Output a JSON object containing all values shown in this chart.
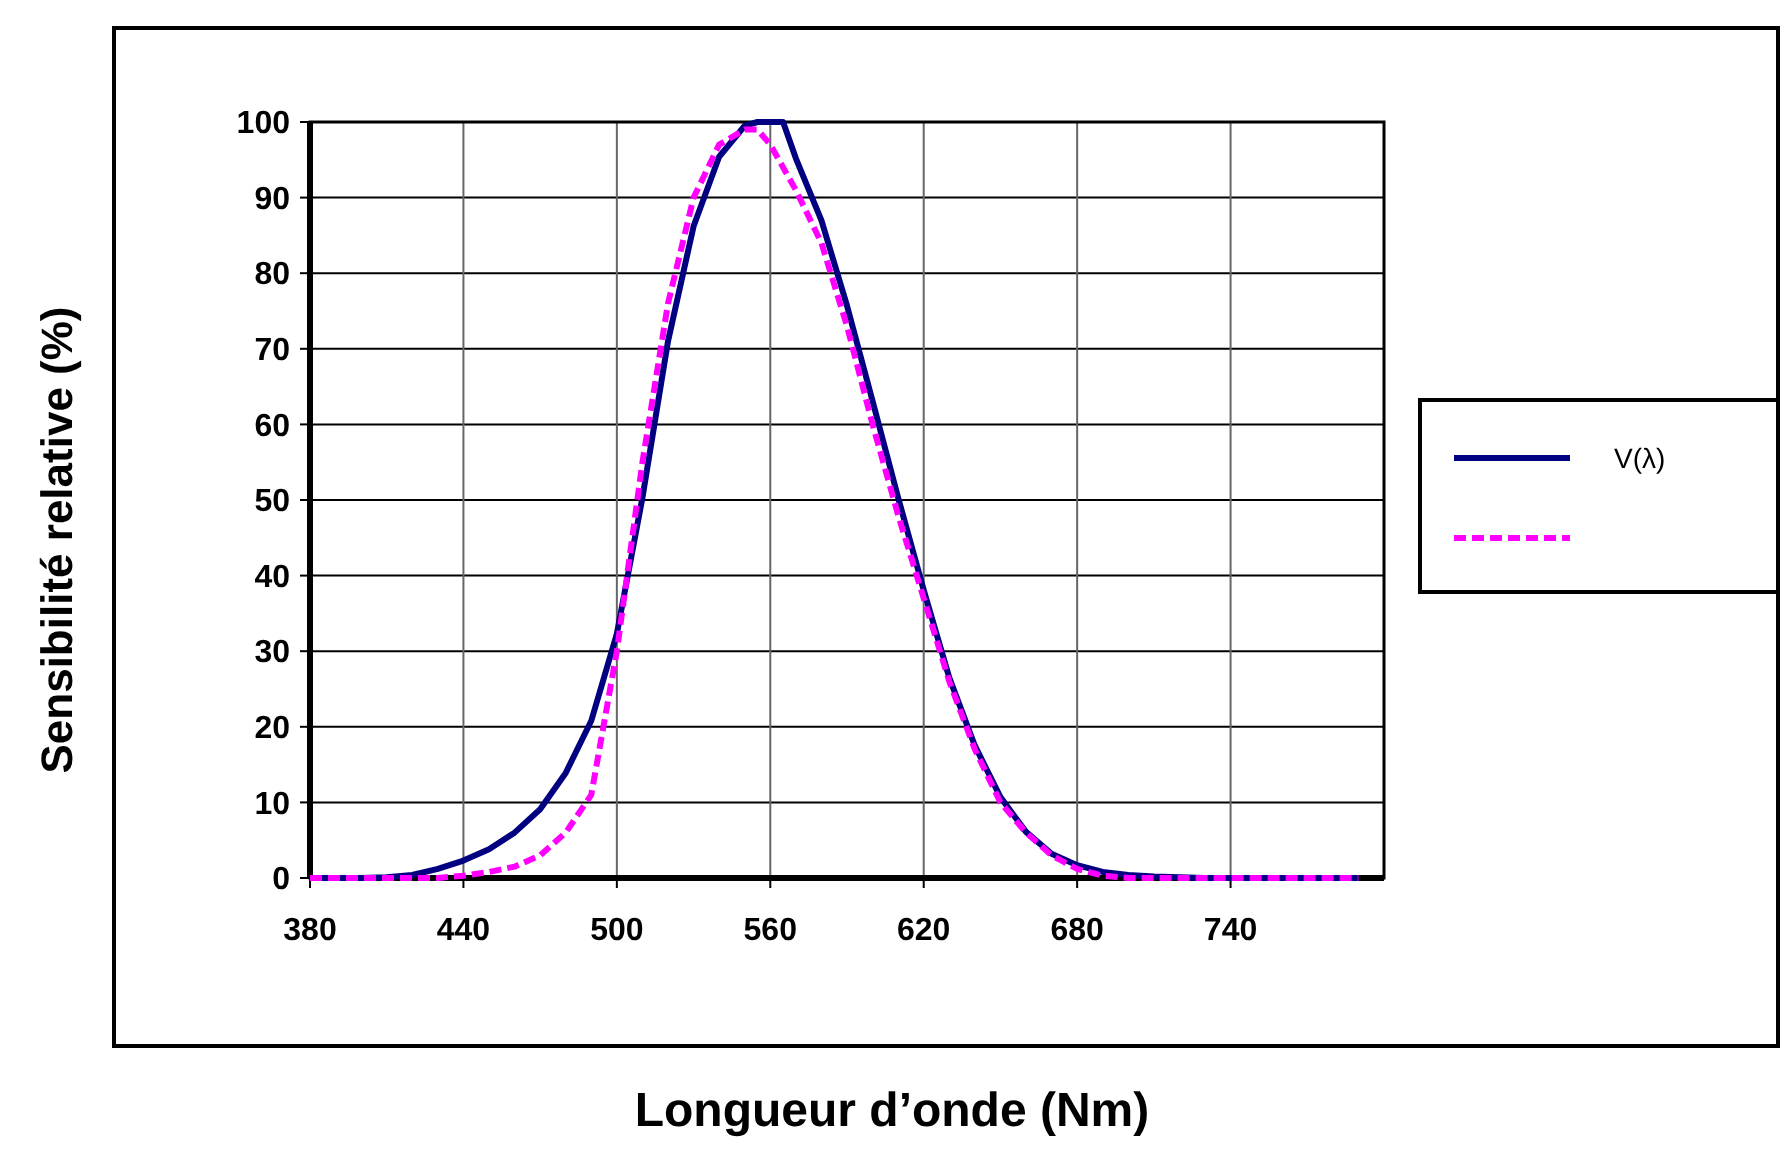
{
  "chart_data": {
    "type": "line",
    "xlabel": "Longueur d’onde (Nm)",
    "ylabel": "Sensibilité relative (%)",
    "x": [
      380,
      390,
      400,
      410,
      420,
      430,
      440,
      450,
      460,
      470,
      480,
      490,
      500,
      510,
      520,
      530,
      540,
      550,
      555,
      560,
      565,
      570,
      580,
      590,
      600,
      610,
      620,
      630,
      640,
      650,
      660,
      670,
      680,
      690,
      700,
      710,
      720,
      730,
      740,
      750,
      760,
      770,
      780,
      790
    ],
    "series": [
      {
        "name": "V(λ)",
        "color": "#000080",
        "line_style": "solid",
        "values": [
          0,
          0,
          0,
          0.1,
          0.4,
          1.2,
          2.3,
          3.8,
          6,
          9.1,
          13.9,
          20.8,
          32.3,
          50.3,
          71,
          86.2,
          95.4,
          99.5,
          100,
          100,
          100,
          95.2,
          87,
          75.7,
          63.1,
          50.3,
          38.1,
          26.5,
          17.5,
          10.7,
          6.1,
          3.2,
          1.7,
          0.8,
          0.4,
          0.2,
          0.1,
          0,
          0,
          0,
          0,
          0,
          0,
          0
        ]
      },
      {
        "color": "#ff00ff",
        "line_style": "dashed",
        "values": [
          0,
          0,
          0,
          0,
          0,
          0,
          0.3,
          0.8,
          1.5,
          3,
          6,
          11,
          30,
          55,
          76,
          90,
          97,
          99,
          99,
          97,
          94,
          91,
          84,
          73,
          60,
          48,
          37,
          26,
          17,
          10,
          6,
          3,
          1.2,
          0.3,
          0,
          0,
          0,
          0,
          0,
          0,
          0,
          0,
          0,
          0
        ]
      }
    ],
    "xlim": [
      380,
      800
    ],
    "xticks": [
      380,
      440,
      500,
      560,
      620,
      680,
      740
    ],
    "ylim": [
      0,
      100
    ],
    "yticks": [
      0,
      10,
      20,
      30,
      40,
      50,
      60,
      70,
      80,
      90,
      100
    ],
    "grid": true,
    "legend": "right"
  }
}
